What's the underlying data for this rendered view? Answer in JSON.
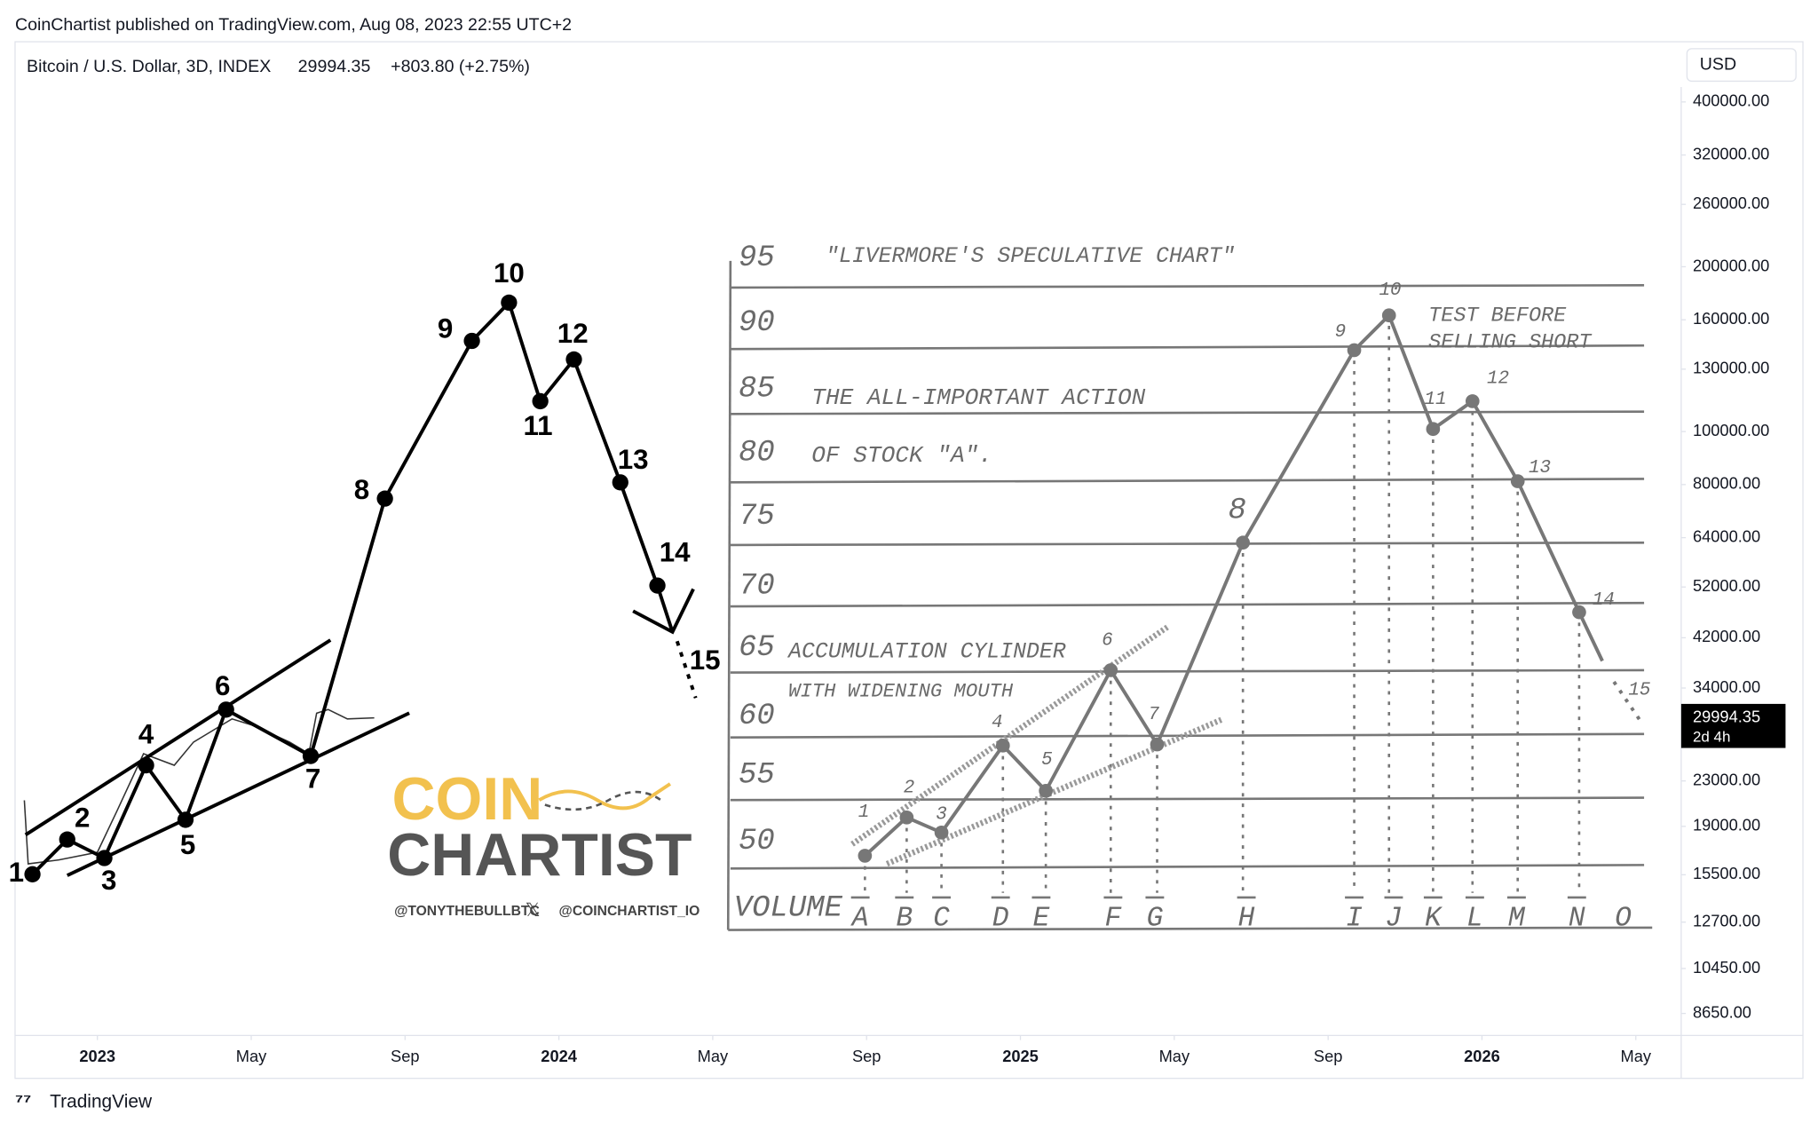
{
  "header": {
    "published": "CoinChartist published on TradingView.com, Aug 08, 2023 22:55 UTC+2",
    "symbol": "Bitcoin / U.S. Dollar, 3D, INDEX",
    "change": "+803.80 (+2.75%)",
    "currency": "USD",
    "countdown": "2d 4h"
  },
  "chart_data": {
    "type": "line",
    "log_scale": true,
    "grid": false,
    "color": "#333333",
    "x": [
      -1.9,
      -1.8,
      -1.0,
      0,
      0.5,
      1.2,
      2,
      2.5,
      3,
      3.5,
      4,
      5,
      5.5,
      5.7,
      6,
      6.5,
      7.2
    ],
    "values": [
      21200,
      16230,
      16500,
      17040,
      20210,
      25790,
      24560,
      27080,
      28430,
      29850,
      29130,
      27080,
      25790,
      30580,
      31060,
      29850,
      29994.35
    ],
    "xlim": [
      -2.14,
      41.18
    ],
    "xticks": [
      {
        "value": 0,
        "label": "2023"
      },
      {
        "value": 4,
        "label": "May"
      },
      {
        "value": 8,
        "label": "Sep"
      },
      {
        "value": 12,
        "label": "2024"
      },
      {
        "value": 16,
        "label": "May"
      },
      {
        "value": 20,
        "label": "Sep"
      },
      {
        "value": 24,
        "label": "2025"
      },
      {
        "value": 28,
        "label": "May"
      },
      {
        "value": 32,
        "label": "Sep"
      },
      {
        "value": 36,
        "label": "2026"
      },
      {
        "value": 40,
        "label": "May"
      }
    ],
    "ylim": [
      7885,
      426000
    ],
    "yticks": [
      {
        "value": 400000,
        "label": "400000.00"
      },
      {
        "value": 320000,
        "label": "320000.00"
      },
      {
        "value": 260000,
        "label": "260000.00"
      },
      {
        "value": 200000,
        "label": "200000.00"
      },
      {
        "value": 160000,
        "label": "160000.00"
      },
      {
        "value": 130000,
        "label": "130000.00"
      },
      {
        "value": 100000,
        "label": "100000.00"
      },
      {
        "value": 80000,
        "label": "80000.00"
      },
      {
        "value": 64000,
        "label": "64000.00"
      },
      {
        "value": 52000,
        "label": "52000.00"
      },
      {
        "value": 42000,
        "label": "42000.00"
      },
      {
        "value": 34000,
        "label": "34000.00"
      },
      {
        "value": 23000,
        "label": "23000.00"
      },
      {
        "value": 19000,
        "label": "19000.00"
      },
      {
        "value": 15500,
        "label": "15500.00"
      },
      {
        "value": 12700,
        "label": "12700.00"
      },
      {
        "value": 10450,
        "label": "10450.00"
      },
      {
        "value": 8650,
        "label": "8650.00"
      }
    ]
  },
  "overlay": {
    "points": [
      "1",
      "2",
      "3",
      "4",
      "5",
      "6",
      "7",
      "8",
      "9",
      "10",
      "11",
      "12",
      "13",
      "14",
      "15"
    ],
    "title": "\"LIVERMORE'S SPECULATIVE CHART\"",
    "levels": [
      "95",
      "90",
      "85",
      "80",
      "75",
      "70",
      "65",
      "60",
      "55",
      "50"
    ],
    "notes": [
      "THE ALL-IMPORTANT ACTION",
      "OF STOCK \"A\".",
      "TEST BEFORE",
      "SELLING SHORT",
      "ACCUMULATION CYLINDER",
      "WITH WIDENING MOUTH"
    ],
    "volume_label": "VOLUME",
    "volume_letters": [
      "A",
      "B",
      "C",
      "D",
      "E",
      "F",
      "G",
      "H",
      "I",
      "J",
      "K",
      "L",
      "M",
      "N",
      "O"
    ]
  },
  "logo": {
    "line1": "COIN",
    "line2": "CHARTIST",
    "handle1": "@TONYTHEBULLBTC",
    "handle2": "@COINCHARTIST_IO"
  },
  "footer": {
    "brand": "TradingView"
  }
}
